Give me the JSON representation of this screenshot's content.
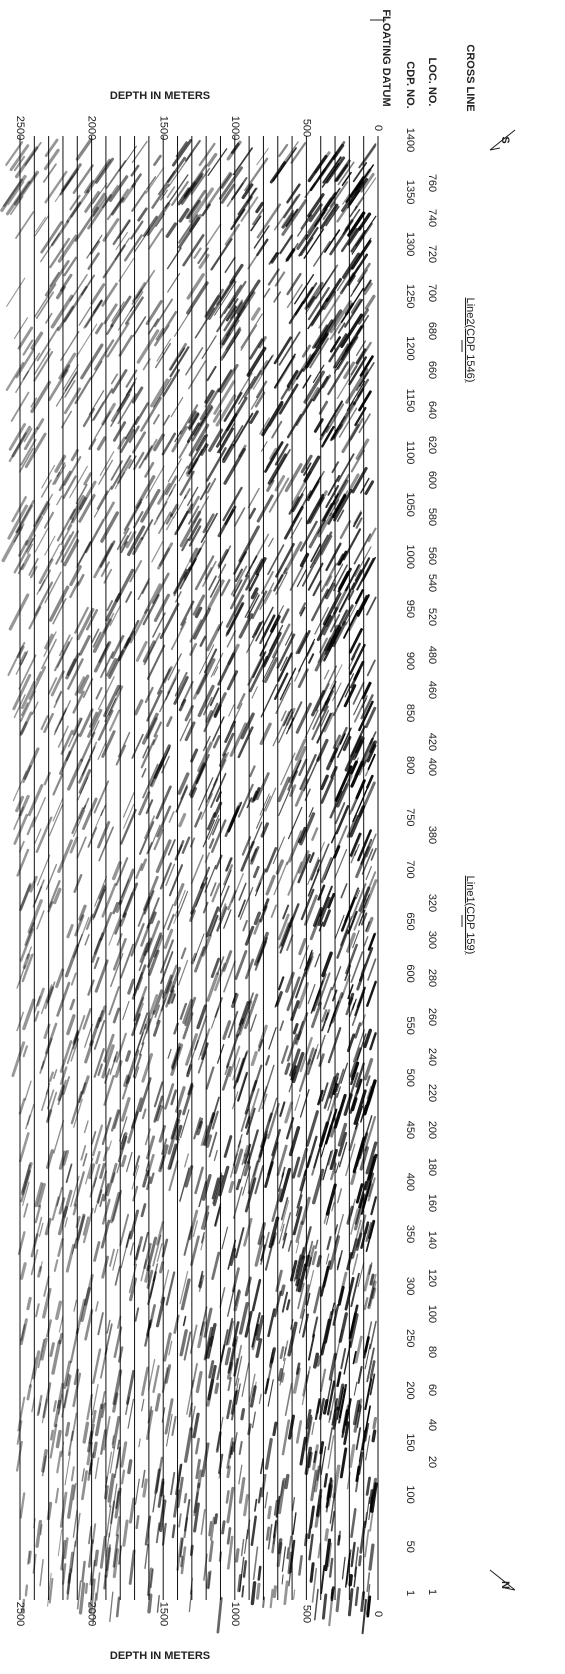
{
  "header": {
    "direction_left": "S",
    "direction_right": "N",
    "cross_line_label": "CROSS LINE",
    "loc_label": "LOC. NO.",
    "cdp_label": "CDP. NO.",
    "datum_label": "FLOATING DATUM",
    "markers": [
      "Line2(CDP 1546)",
      "Line1(CDP 159)"
    ]
  },
  "cdp_numbers": [
    1400,
    1350,
    1300,
    1250,
    1200,
    1150,
    1100,
    1050,
    1000,
    950,
    900,
    850,
    800,
    750,
    700,
    650,
    600,
    550,
    500,
    450,
    400,
    350,
    300,
    250,
    200,
    150,
    100,
    50,
    1
  ],
  "loc_numbers": [
    760,
    740,
    720,
    700,
    680,
    660,
    640,
    620,
    600,
    580,
    560,
    540,
    520,
    480,
    460,
    420,
    400,
    380,
    320,
    300,
    280,
    260,
    240,
    220,
    200,
    180,
    160,
    140,
    120,
    100,
    80,
    60,
    40,
    20,
    1
  ],
  "depth_axis": {
    "label": "DEPTH IN METERS",
    "ticks": [
      0,
      500,
      1000,
      1500,
      2000,
      2500
    ]
  }
}
